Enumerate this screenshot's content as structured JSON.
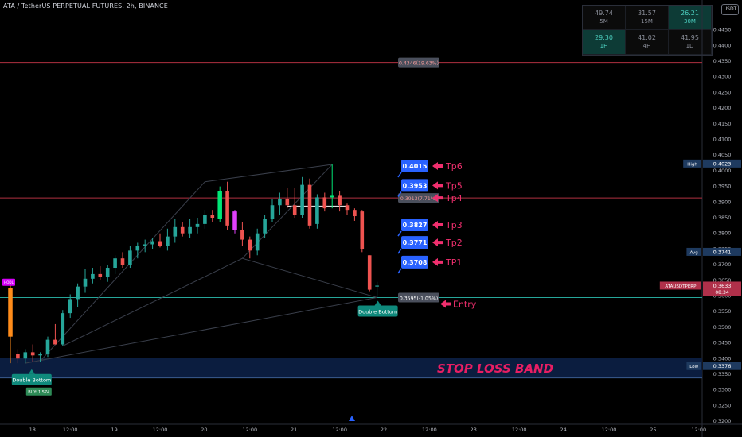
{
  "header": {
    "title": "ATA / TetherUS PERPETUAL FUTURES, 2h, BINANCE"
  },
  "currency_badge": "USDT",
  "rsi_table": [
    {
      "value": "49.74",
      "tf": "5M",
      "active": false
    },
    {
      "value": "31.57",
      "tf": "15M",
      "active": false
    },
    {
      "value": "26.21",
      "tf": "30M",
      "active": true
    },
    {
      "value": "29.30",
      "tf": "1H",
      "active": true
    },
    {
      "value": "41.02",
      "tf": "4H",
      "active": false
    },
    {
      "value": "41.95",
      "tf": "1D",
      "active": false
    }
  ],
  "colors": {
    "background": "#000000",
    "up": "#26a69a",
    "down": "#ef5350",
    "tp_box": "#2962ff",
    "arrow": "#f02f6e",
    "stop_band": "#0b1d3f",
    "stop_text": "#e91e63",
    "pattern_label": "#0f8a7c",
    "entry_line": "#26a69a",
    "target_line": "#b03040"
  },
  "chart_data": {
    "type": "candlestick",
    "symbol": "ATAUSDTPERP",
    "interval": "2h",
    "ylim": [
      0.3195,
      0.4505
    ],
    "y_ticks": [
      "0.4450",
      "0.4400",
      "0.4350",
      "0.4300",
      "0.4250",
      "0.4200",
      "0.4150",
      "0.4100",
      "0.4050",
      "0.4000",
      "0.3950",
      "0.3900",
      "0.3850",
      "0.3800",
      "0.3750",
      "0.3700",
      "0.3650",
      "0.3600",
      "0.3550",
      "0.3500",
      "0.3450",
      "0.3400",
      "0.3350",
      "0.3300",
      "0.3250",
      "0.3200"
    ],
    "x_ticks": [
      {
        "label": "18",
        "bar": 2
      },
      {
        "label": "12:00",
        "bar": 8
      },
      {
        "label": "19",
        "bar": 14
      },
      {
        "label": "12:00",
        "bar": 20
      },
      {
        "label": "20",
        "bar": 26
      },
      {
        "label": "12:00",
        "bar": 32
      },
      {
        "label": "21",
        "bar": 38
      },
      {
        "label": "12:00",
        "bar": 44
      },
      {
        "label": "22",
        "bar": 50
      },
      {
        "label": "12:00",
        "bar": 56
      },
      {
        "label": "23",
        "bar": 62
      },
      {
        "label": "12:00",
        "bar": 68
      },
      {
        "label": "24",
        "bar": 74
      },
      {
        "label": "12:00",
        "bar": 80
      },
      {
        "label": "25",
        "bar": 86
      },
      {
        "label": "12:00",
        "bar": 92
      }
    ],
    "candles": [
      {
        "o": 0.347,
        "h": 0.364,
        "l": 0.3385,
        "c": 0.3625,
        "color": "#ff8c1a"
      },
      {
        "o": 0.3415,
        "h": 0.343,
        "l": 0.3385,
        "c": 0.34
      },
      {
        "o": 0.34,
        "h": 0.343,
        "l": 0.3385,
        "c": 0.342
      },
      {
        "o": 0.342,
        "h": 0.3445,
        "l": 0.339,
        "c": 0.341
      },
      {
        "o": 0.341,
        "h": 0.342,
        "l": 0.339,
        "c": 0.3415
      },
      {
        "o": 0.3415,
        "h": 0.347,
        "l": 0.3405,
        "c": 0.346
      },
      {
        "o": 0.346,
        "h": 0.351,
        "l": 0.3445,
        "c": 0.3445
      },
      {
        "o": 0.3445,
        "h": 0.3555,
        "l": 0.344,
        "c": 0.3545
      },
      {
        "o": 0.3545,
        "h": 0.3605,
        "l": 0.353,
        "c": 0.359
      },
      {
        "o": 0.359,
        "h": 0.364,
        "l": 0.3565,
        "c": 0.363
      },
      {
        "o": 0.363,
        "h": 0.3685,
        "l": 0.361,
        "c": 0.3655
      },
      {
        "o": 0.3655,
        "h": 0.369,
        "l": 0.364,
        "c": 0.367
      },
      {
        "o": 0.367,
        "h": 0.3695,
        "l": 0.365,
        "c": 0.366
      },
      {
        "o": 0.366,
        "h": 0.37,
        "l": 0.3645,
        "c": 0.369
      },
      {
        "o": 0.369,
        "h": 0.373,
        "l": 0.367,
        "c": 0.372
      },
      {
        "o": 0.372,
        "h": 0.374,
        "l": 0.369,
        "c": 0.37
      },
      {
        "o": 0.37,
        "h": 0.376,
        "l": 0.369,
        "c": 0.3745
      },
      {
        "o": 0.3745,
        "h": 0.377,
        "l": 0.372,
        "c": 0.376
      },
      {
        "o": 0.376,
        "h": 0.378,
        "l": 0.374,
        "c": 0.3765
      },
      {
        "o": 0.3765,
        "h": 0.3785,
        "l": 0.375,
        "c": 0.3775
      },
      {
        "o": 0.3775,
        "h": 0.38,
        "l": 0.3755,
        "c": 0.376
      },
      {
        "o": 0.376,
        "h": 0.3815,
        "l": 0.3745,
        "c": 0.379
      },
      {
        "o": 0.379,
        "h": 0.3845,
        "l": 0.377,
        "c": 0.382
      },
      {
        "o": 0.382,
        "h": 0.3835,
        "l": 0.379,
        "c": 0.38
      },
      {
        "o": 0.38,
        "h": 0.3845,
        "l": 0.3785,
        "c": 0.382
      },
      {
        "o": 0.382,
        "h": 0.385,
        "l": 0.38,
        "c": 0.383
      },
      {
        "o": 0.383,
        "h": 0.3875,
        "l": 0.3815,
        "c": 0.386
      },
      {
        "o": 0.386,
        "h": 0.3875,
        "l": 0.3835,
        "c": 0.385
      },
      {
        "o": 0.3845,
        "h": 0.395,
        "l": 0.3835,
        "c": 0.3935,
        "color": "#00e676"
      },
      {
        "o": 0.3935,
        "h": 0.3965,
        "l": 0.381,
        "c": 0.3825
      },
      {
        "o": 0.387,
        "h": 0.3875,
        "l": 0.38,
        "c": 0.381,
        "color": "#e040fb"
      },
      {
        "o": 0.381,
        "h": 0.3835,
        "l": 0.376,
        "c": 0.378
      },
      {
        "o": 0.378,
        "h": 0.379,
        "l": 0.372,
        "c": 0.3745
      },
      {
        "o": 0.3745,
        "h": 0.3815,
        "l": 0.373,
        "c": 0.38
      },
      {
        "o": 0.38,
        "h": 0.386,
        "l": 0.3785,
        "c": 0.3845
      },
      {
        "o": 0.3845,
        "h": 0.391,
        "l": 0.3835,
        "c": 0.389
      },
      {
        "o": 0.389,
        "h": 0.393,
        "l": 0.386,
        "c": 0.391
      },
      {
        "o": 0.391,
        "h": 0.3945,
        "l": 0.388,
        "c": 0.389
      },
      {
        "o": 0.389,
        "h": 0.3945,
        "l": 0.385,
        "c": 0.386
      },
      {
        "o": 0.386,
        "h": 0.398,
        "l": 0.385,
        "c": 0.3955
      },
      {
        "o": 0.3955,
        "h": 0.3975,
        "l": 0.3815,
        "c": 0.3825
      },
      {
        "o": 0.383,
        "h": 0.3925,
        "l": 0.3815,
        "c": 0.3915
      },
      {
        "o": 0.3915,
        "h": 0.393,
        "l": 0.387,
        "c": 0.388
      },
      {
        "o": 0.3915,
        "h": 0.402,
        "l": 0.388,
        "c": 0.392,
        "color": "#00e676"
      },
      {
        "o": 0.392,
        "h": 0.3935,
        "l": 0.387,
        "c": 0.389
      },
      {
        "o": 0.389,
        "h": 0.3895,
        "l": 0.386,
        "c": 0.3875
      },
      {
        "o": 0.3875,
        "h": 0.388,
        "l": 0.384,
        "c": 0.3855
      },
      {
        "o": 0.387,
        "h": 0.3875,
        "l": 0.374,
        "c": 0.375
      },
      {
        "o": 0.373,
        "h": 0.373,
        "l": 0.3615,
        "c": 0.362
      },
      {
        "o": 0.363,
        "h": 0.3645,
        "l": 0.3595,
        "c": 0.3633
      }
    ],
    "levels": {
      "target": 0.4346,
      "tp4_line": 0.3913,
      "entry": 0.3595,
      "stop_top": 0.3402,
      "stop_bottom": 0.3338,
      "bid_line": 0.3887
    },
    "measure_labels": [
      {
        "price": 0.4346,
        "text": "0.4346(19.63%)"
      },
      {
        "price": 0.3913,
        "text": "0.3913(7.71%)"
      },
      {
        "price": 0.3595,
        "text": "0.3595(-1.05%)"
      }
    ],
    "take_profits": [
      {
        "name": "Tp6",
        "value": "0.4015",
        "price": 0.4015
      },
      {
        "name": "Tp5",
        "value": "0.3953",
        "price": 0.3953
      },
      {
        "name": "Tp4",
        "value": "",
        "price": 0.3913
      },
      {
        "name": "Tp3",
        "value": "0.3827",
        "price": 0.3827
      },
      {
        "name": "Tp2",
        "value": "0.3771",
        "price": 0.3771
      },
      {
        "name": "TP1",
        "value": "0.3708",
        "price": 0.3708
      }
    ],
    "entry_label": "Entry",
    "stop_loss_label": "STOP LOSS BAND",
    "patterns": [
      {
        "text": "Double Bottom",
        "bar": 2,
        "price": 0.3376
      },
      {
        "text": "Double Bottom",
        "bar": 49,
        "price": 0.3595
      }
    ],
    "signals": [
      {
        "text": "BUY: 1.574",
        "bar": 2,
        "price": 0.3376
      },
      {
        "text": "HODL",
        "bar": 0,
        "price": 0.364
      }
    ],
    "axis_tags": [
      {
        "label": "High",
        "value": "0.4023",
        "price": 0.4023,
        "bg": "#1e3a5f"
      },
      {
        "label": "Avg",
        "value": "0.3741",
        "price": 0.3741,
        "bg": "#1e3a5f"
      },
      {
        "label": "ATAUSDTPERP",
        "value": "0.3633",
        "price": 0.3633,
        "bg": "#b0304a",
        "sub": "08:34"
      },
      {
        "label": "Low",
        "value": "0.3376",
        "price": 0.3376,
        "bg": "#1e3a5f"
      }
    ]
  }
}
